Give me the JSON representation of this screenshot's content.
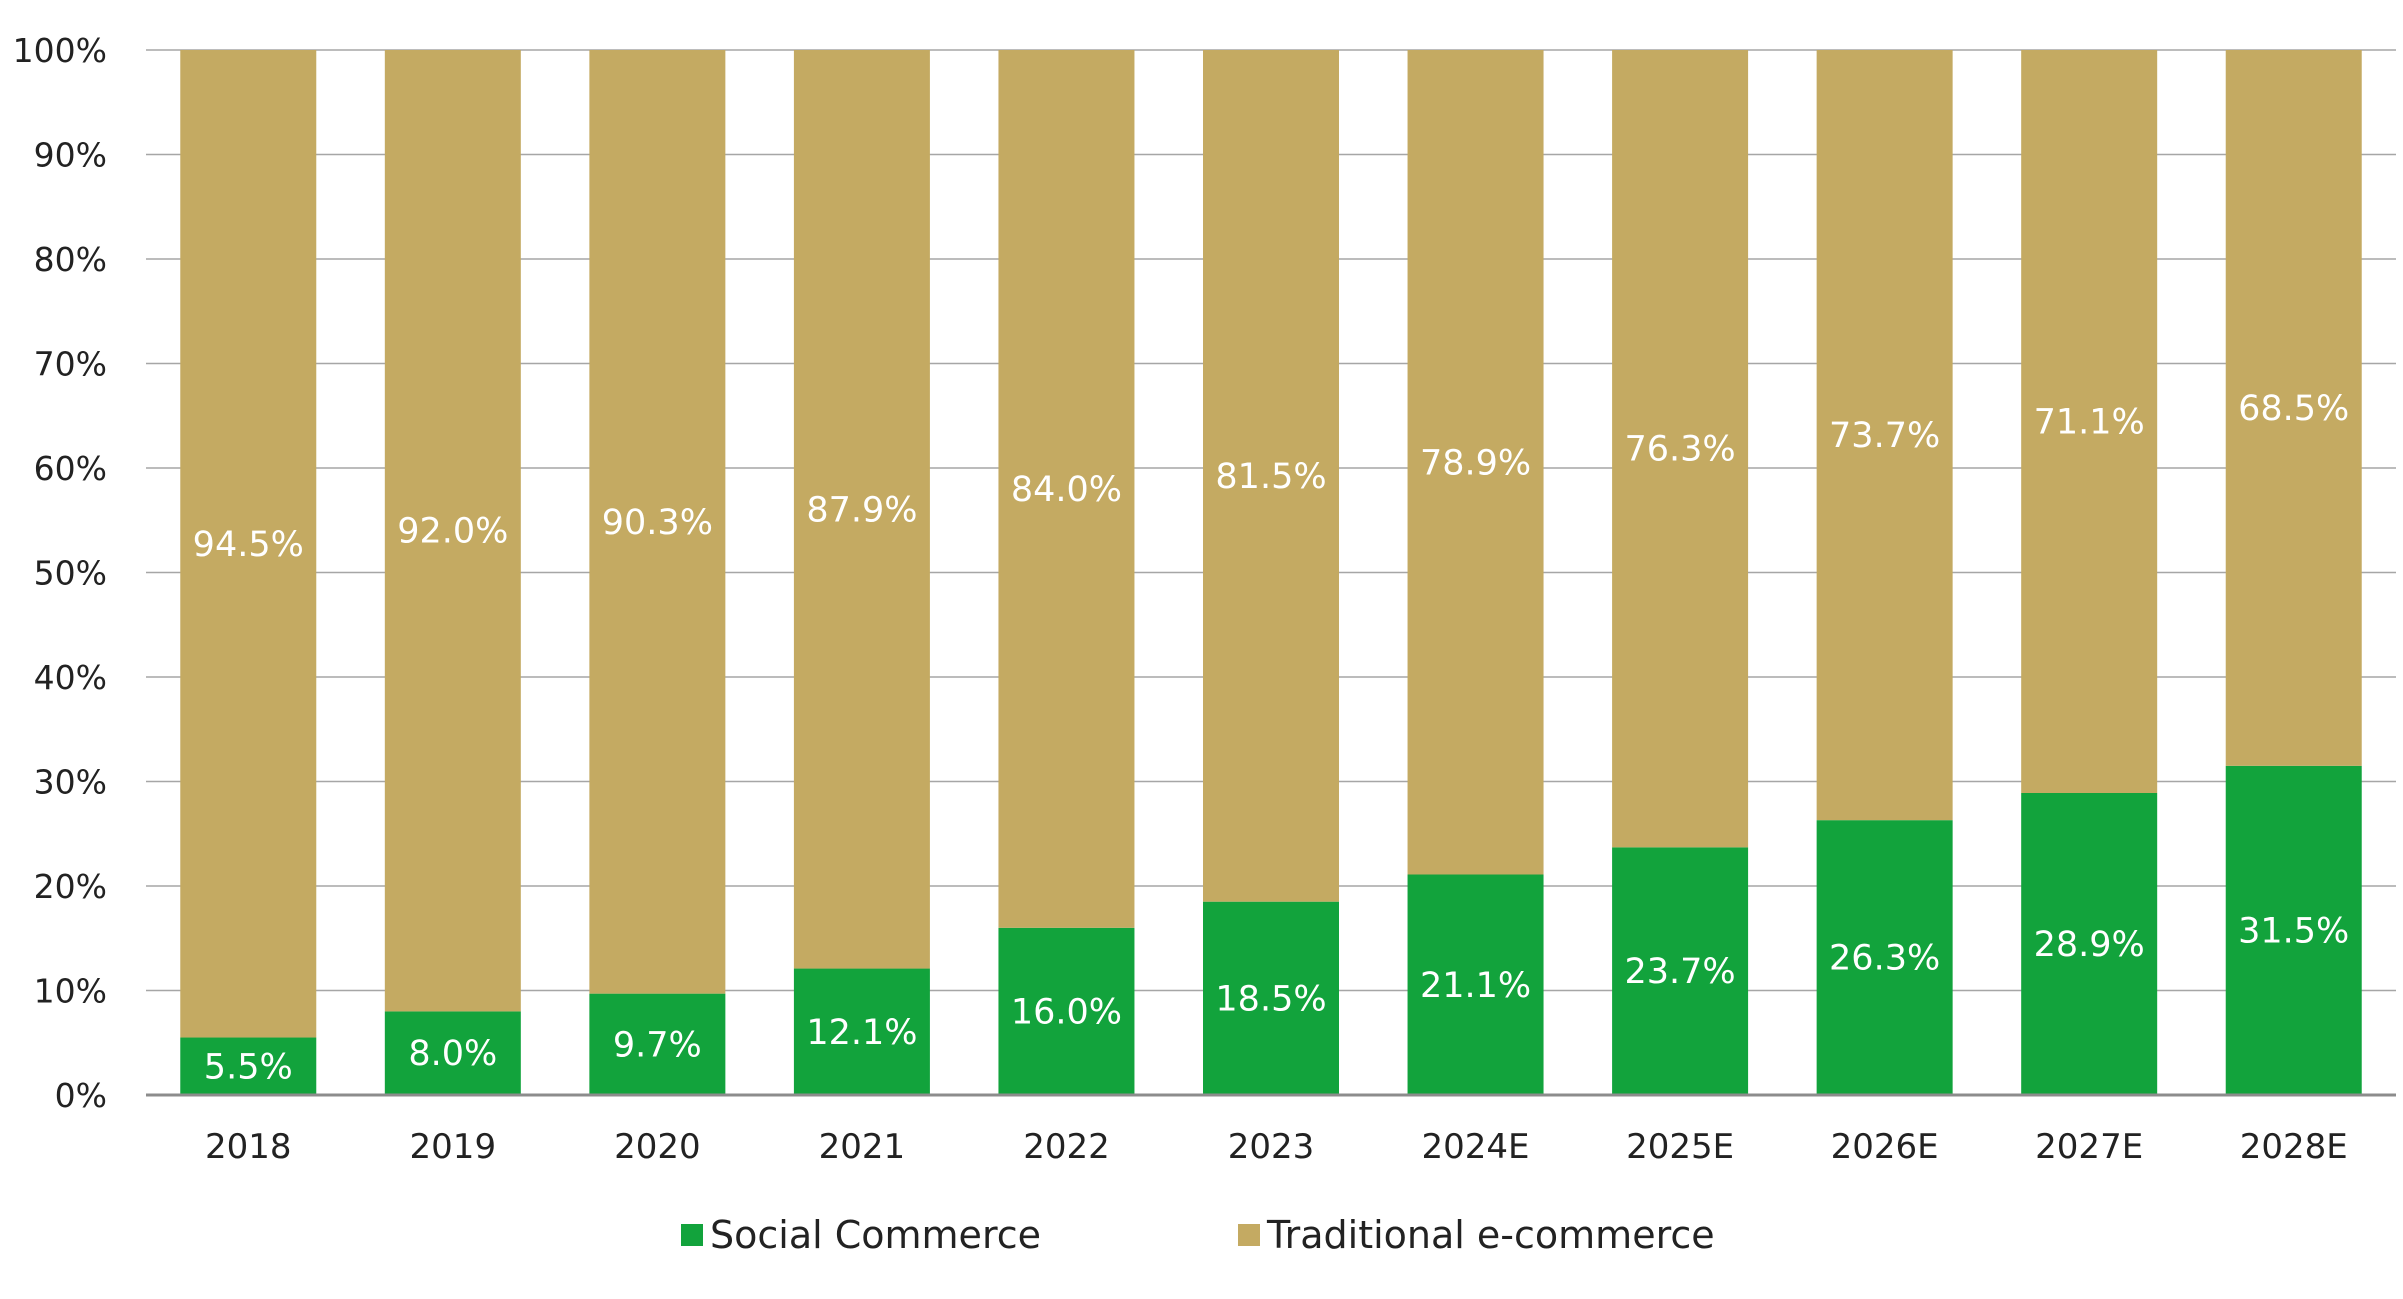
{
  "chart_data": {
    "type": "bar",
    "stacked": true,
    "categories": [
      "2018",
      "2019",
      "2020",
      "2021",
      "2022",
      "2023",
      "2024E",
      "2025E",
      "2026E",
      "2027E",
      "2028E"
    ],
    "series": [
      {
        "name": "Social Commerce",
        "color": "#12a33c",
        "values": [
          5.5,
          8.0,
          9.7,
          12.1,
          16.0,
          18.5,
          21.1,
          23.7,
          26.3,
          28.9,
          31.5
        ],
        "labels": [
          "5.5%",
          "8.0%",
          "9.7%",
          "12.1%",
          "16.0%",
          "18.5%",
          "21.1%",
          "23.7%",
          "26.3%",
          "28.9%",
          "31.5%"
        ]
      },
      {
        "name": "Traditional e-commerce",
        "color": "#c4aa62",
        "values": [
          94.5,
          92.0,
          90.3,
          87.9,
          84.0,
          81.5,
          78.9,
          76.3,
          73.7,
          71.1,
          68.5
        ],
        "labels": [
          "94.5%",
          "92.0%",
          "90.3%",
          "87.9%",
          "84.0%",
          "81.5%",
          "78.9%",
          "76.3%",
          "73.7%",
          "71.1%",
          "68.5%"
        ]
      }
    ],
    "yticks": [
      "0%",
      "10%",
      "20%",
      "30%",
      "40%",
      "50%",
      "60%",
      "70%",
      "80%",
      "90%",
      "100%"
    ],
    "ylim": [
      0,
      100
    ],
    "title": "",
    "xlabel": "",
    "ylabel": "",
    "grid": true,
    "legend": "bottom-center"
  }
}
